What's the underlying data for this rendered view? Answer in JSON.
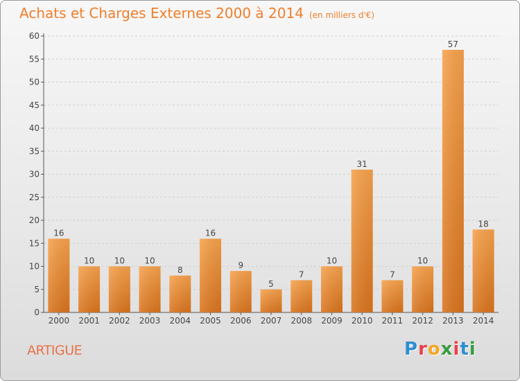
{
  "header": {
    "title": "Achats et Charges Externes 2000 à 2014",
    "subtitle": "(en milliers d'€)"
  },
  "commune": "ARTIGUE",
  "logo": {
    "text": "Proxiti",
    "letters": [
      {
        "ch": "P",
        "color": "#2f8fd0"
      },
      {
        "ch": "r",
        "color": "#e8414a"
      },
      {
        "ch": "o",
        "color": "#f5a623"
      },
      {
        "ch": "x",
        "color": "#3a9b3f"
      },
      {
        "ch": "i",
        "color": "#e8414a"
      },
      {
        "ch": "t",
        "color": "#2f8fd0"
      },
      {
        "ch": "i",
        "color": "#3a9b3f"
      }
    ]
  },
  "colors": {
    "bar_top": "#f7a24c",
    "bar_bottom": "#d9741e",
    "title": "#f07e2a"
  },
  "chart_data": {
    "type": "bar",
    "title": "Achats et Charges Externes 2000 à 2014",
    "subtitle": "(en milliers d'€)",
    "categories": [
      "2000",
      "2001",
      "2002",
      "2003",
      "2004",
      "2005",
      "2006",
      "2007",
      "2008",
      "2009",
      "2010",
      "2011",
      "2012",
      "2013",
      "2014"
    ],
    "values": [
      16,
      10,
      10,
      10,
      8,
      16,
      9,
      5,
      7,
      10,
      31,
      7,
      10,
      57,
      18
    ],
    "ylim": [
      0,
      60
    ],
    "yticks": [
      0,
      5,
      10,
      15,
      20,
      25,
      30,
      35,
      40,
      45,
      50,
      55,
      60
    ],
    "grid": true,
    "data_labels": true
  }
}
